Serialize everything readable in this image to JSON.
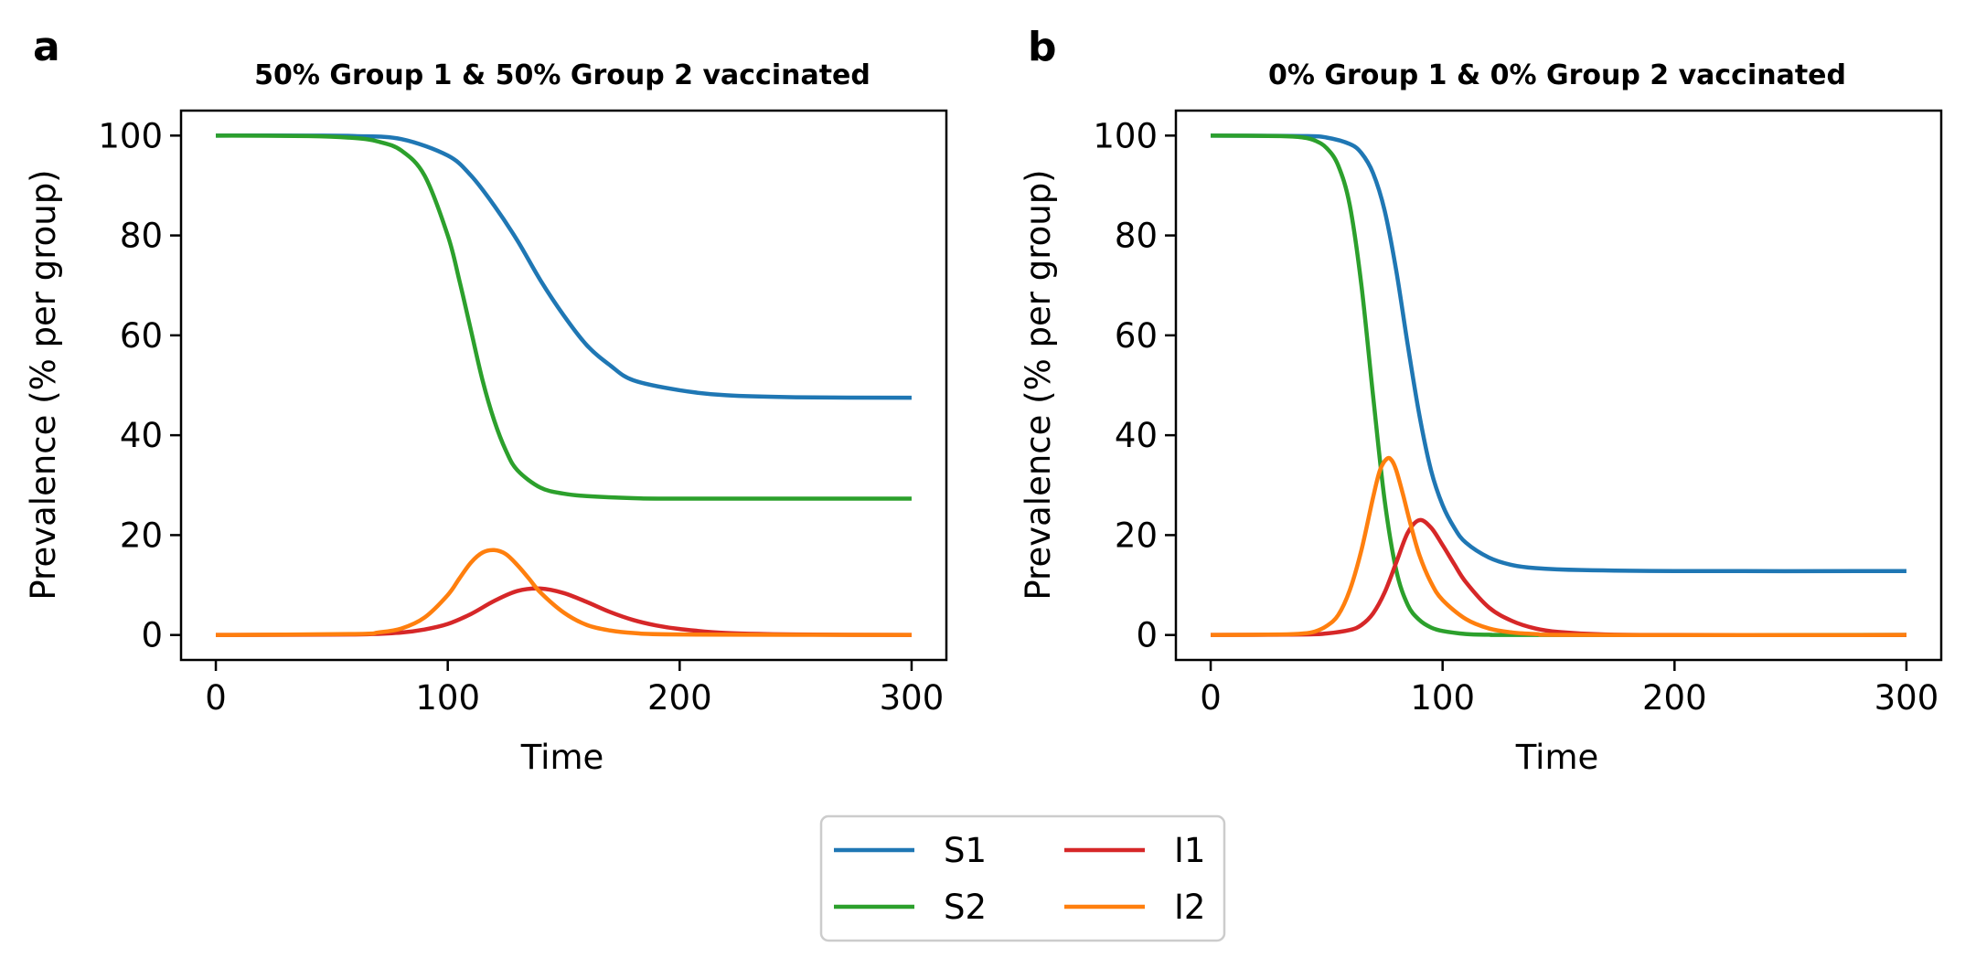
{
  "chart_data": [
    {
      "panel": "a",
      "type": "line",
      "title": "50% Group 1 & 50% Group 2 vaccinated",
      "xlabel": "Time",
      "ylabel": "Prevalence (% per group)",
      "xlim": [
        -15,
        315
      ],
      "ylim": [
        -5,
        105
      ],
      "xticks": [
        0,
        100,
        200,
        300
      ],
      "yticks": [
        0,
        20,
        40,
        60,
        80,
        100
      ],
      "grid": false,
      "series": [
        {
          "name": "S1",
          "color": "#1f77b4",
          "x": [
            0,
            40,
            60,
            80,
            100,
            110,
            120,
            130,
            140,
            150,
            160,
            170,
            180,
            200,
            220,
            250,
            300
          ],
          "y": [
            100,
            100,
            99.9,
            99.3,
            96,
            92,
            86,
            79,
            71,
            64,
            58,
            54,
            51,
            49,
            48,
            47.6,
            47.5
          ]
        },
        {
          "name": "S2",
          "color": "#2ca02c",
          "x": [
            0,
            40,
            60,
            70,
            80,
            90,
            100,
            105,
            110,
            115,
            120,
            125,
            130,
            140,
            150,
            160,
            180,
            200,
            300
          ],
          "y": [
            100,
            99.9,
            99.5,
            98.8,
            97,
            92,
            80,
            71,
            61,
            51,
            43,
            37,
            33,
            29.5,
            28.3,
            27.8,
            27.4,
            27.3,
            27.3
          ]
        },
        {
          "name": "I1",
          "color": "#d62728",
          "x": [
            0,
            60,
            80,
            90,
            100,
            110,
            120,
            130,
            140,
            150,
            160,
            170,
            180,
            190,
            200,
            220,
            250,
            300
          ],
          "y": [
            0,
            0.1,
            0.5,
            1.1,
            2.2,
            4.2,
            6.8,
            8.8,
            9.3,
            8.4,
            6.6,
            4.6,
            3.0,
            1.9,
            1.2,
            0.4,
            0.1,
            0
          ]
        },
        {
          "name": "I2",
          "color": "#ff7f0e",
          "x": [
            0,
            60,
            70,
            80,
            90,
            100,
            105,
            110,
            115,
            120,
            125,
            130,
            135,
            140,
            150,
            160,
            170,
            180,
            200,
            300
          ],
          "y": [
            0,
            0.2,
            0.5,
            1.3,
            3.5,
            8.0,
            11.3,
            14.5,
            16.5,
            17.0,
            16.2,
            14.0,
            11.3,
            8.5,
            4.5,
            2.0,
            0.9,
            0.4,
            0.1,
            0
          ]
        }
      ]
    },
    {
      "panel": "b",
      "type": "line",
      "title": "0% Group 1 & 0% Group 2 vaccinated",
      "xlabel": "Time",
      "ylabel": "Prevalence (% per group)",
      "xlim": [
        -15,
        315
      ],
      "ylim": [
        -5,
        105
      ],
      "xticks": [
        0,
        100,
        200,
        300
      ],
      "yticks": [
        0,
        20,
        40,
        60,
        80,
        100
      ],
      "grid": false,
      "series": [
        {
          "name": "S1",
          "color": "#1f77b4",
          "x": [
            0,
            40,
            50,
            60,
            65,
            70,
            75,
            80,
            85,
            90,
            95,
            100,
            105,
            110,
            120,
            130,
            140,
            160,
            200,
            300
          ],
          "y": [
            100,
            99.9,
            99.6,
            98.3,
            96.5,
            92.5,
            85,
            73,
            58,
            44,
            33,
            26,
            21.5,
            18.5,
            15.5,
            14,
            13.4,
            13,
            12.8,
            12.8
          ]
        },
        {
          "name": "S2",
          "color": "#2ca02c",
          "x": [
            0,
            30,
            40,
            45,
            50,
            55,
            60,
            65,
            70,
            75,
            80,
            85,
            90,
            95,
            100,
            110,
            120,
            140,
            300
          ],
          "y": [
            100,
            99.9,
            99.6,
            99.0,
            97.5,
            94,
            86,
            70,
            48,
            27,
            13,
            6,
            3,
            1.5,
            0.8,
            0.2,
            0.05,
            0,
            0
          ]
        },
        {
          "name": "I1",
          "color": "#d62728",
          "x": [
            0,
            40,
            50,
            60,
            65,
            70,
            75,
            80,
            85,
            90,
            95,
            100,
            105,
            110,
            120,
            130,
            140,
            150,
            170,
            200,
            300
          ],
          "y": [
            0,
            0.1,
            0.3,
            1.0,
            2.0,
            4.3,
            8.5,
            14.5,
            20.5,
            23.0,
            21.5,
            18.0,
            14.2,
            10.6,
            5.5,
            2.8,
            1.3,
            0.6,
            0.1,
            0,
            0
          ]
        },
        {
          "name": "I2",
          "color": "#ff7f0e",
          "x": [
            0,
            30,
            40,
            45,
            50,
            55,
            60,
            65,
            70,
            73,
            76,
            78,
            80,
            83,
            86,
            90,
            95,
            100,
            110,
            120,
            130,
            140,
            160,
            300
          ],
          "y": [
            0,
            0.1,
            0.3,
            0.7,
            1.8,
            4.0,
            9.0,
            17.0,
            27.5,
            33.0,
            35.3,
            35.0,
            33.0,
            28.0,
            22.5,
            16.0,
            10.5,
            7.0,
            3.2,
            1.3,
            0.5,
            0.2,
            0,
            0
          ]
        }
      ]
    }
  ],
  "legend": {
    "location": "bottom-center",
    "ncol": 2,
    "entries": [
      {
        "label": "S1",
        "color": "#1f77b4"
      },
      {
        "label": "S2",
        "color": "#2ca02c"
      },
      {
        "label": "I1",
        "color": "#d62728"
      },
      {
        "label": "I2",
        "color": "#ff7f0e"
      }
    ]
  }
}
